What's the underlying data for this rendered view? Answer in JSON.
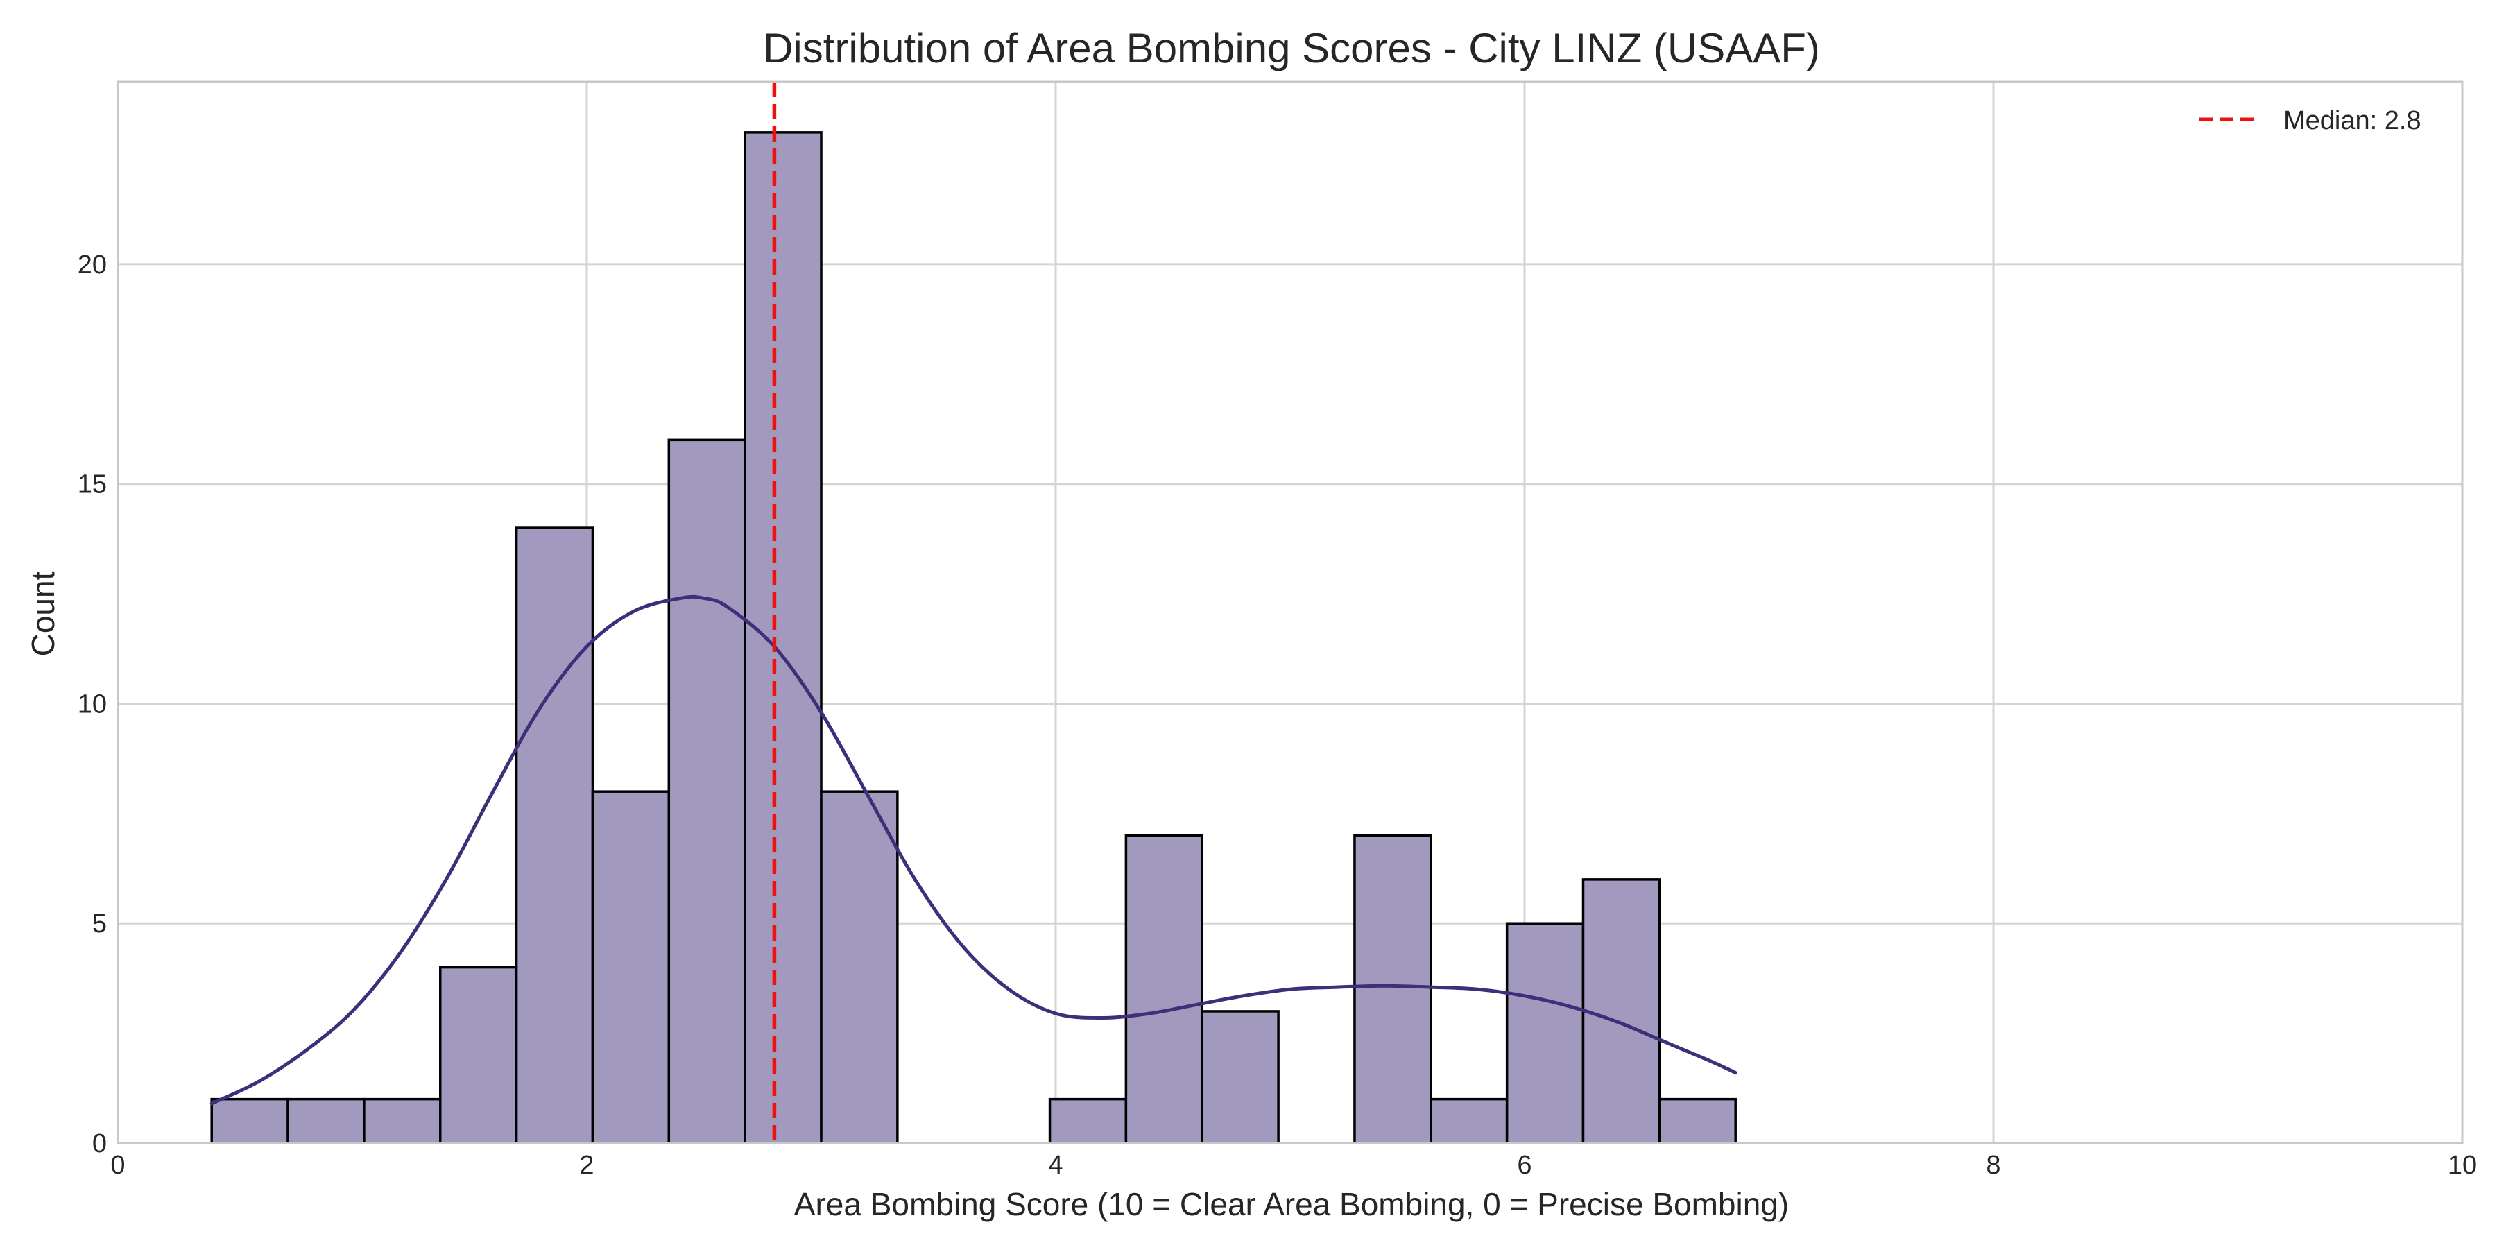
{
  "chart_data": {
    "type": "bar",
    "title": "Distribution of Area Bombing Scores - City LINZ (USAAF)",
    "xlabel": "Area Bombing Score (10 = Clear Area Bombing, 0 = Precise Bombing)",
    "ylabel": "Count",
    "xlim": [
      0,
      10
    ],
    "ylim": [
      0,
      24.15
    ],
    "x_ticks": [
      0,
      2,
      4,
      6,
      8,
      10
    ],
    "y_ticks": [
      0,
      5,
      10,
      15,
      20
    ],
    "grid": true,
    "legend_position": "top-right",
    "bins": [
      {
        "left": 0.4,
        "right": 0.725,
        "count": 1
      },
      {
        "left": 0.725,
        "right": 1.05,
        "count": 1
      },
      {
        "left": 1.05,
        "right": 1.375,
        "count": 1
      },
      {
        "left": 1.375,
        "right": 1.7,
        "count": 4
      },
      {
        "left": 1.7,
        "right": 2.025,
        "count": 14
      },
      {
        "left": 2.025,
        "right": 2.35,
        "count": 8
      },
      {
        "left": 2.35,
        "right": 2.675,
        "count": 16
      },
      {
        "left": 2.675,
        "right": 3.0,
        "count": 23
      },
      {
        "left": 3.0,
        "right": 3.325,
        "count": 8
      },
      {
        "left": 3.325,
        "right": 3.65,
        "count": 0
      },
      {
        "left": 3.65,
        "right": 3.975,
        "count": 0
      },
      {
        "left": 3.975,
        "right": 4.3,
        "count": 1
      },
      {
        "left": 4.3,
        "right": 4.625,
        "count": 7
      },
      {
        "left": 4.625,
        "right": 4.95,
        "count": 3
      },
      {
        "left": 4.95,
        "right": 5.275,
        "count": 0
      },
      {
        "left": 5.275,
        "right": 5.6,
        "count": 7
      },
      {
        "left": 5.6,
        "right": 5.925,
        "count": 1
      },
      {
        "left": 5.925,
        "right": 6.25,
        "count": 5
      },
      {
        "left": 6.25,
        "right": 6.575,
        "count": 6
      },
      {
        "left": 6.575,
        "right": 6.9,
        "count": 1
      }
    ],
    "kde": {
      "x": [
        0.4,
        0.6,
        0.8,
        1.0,
        1.2,
        1.4,
        1.6,
        1.8,
        2.0,
        2.2,
        2.4,
        2.5,
        2.6,
        2.8,
        3.0,
        3.2,
        3.4,
        3.6,
        3.8,
        4.0,
        4.2,
        4.4,
        4.6,
        4.8,
        5.0,
        5.2,
        5.4,
        5.6,
        5.8,
        6.0,
        6.2,
        6.4,
        6.6,
        6.8,
        6.9
      ],
      "y": [
        0.9,
        1.4,
        2.1,
        3.0,
        4.3,
        6.0,
        8.0,
        9.9,
        11.3,
        12.1,
        12.4,
        12.4,
        12.2,
        11.3,
        9.8,
        7.9,
        6.0,
        4.5,
        3.5,
        2.95,
        2.85,
        2.95,
        3.15,
        3.35,
        3.5,
        3.55,
        3.58,
        3.55,
        3.5,
        3.35,
        3.1,
        2.75,
        2.3,
        1.85,
        1.6
      ]
    },
    "median": {
      "value": 2.8,
      "label": "Median: 2.8"
    },
    "colors": {
      "bar_fill": "#a29abe",
      "bar_edge": "#000000",
      "kde_line": "#3f2f7a",
      "median_line": "#f01010",
      "grid": "#d4d4d4",
      "axes_edge": "#c8c8c8"
    }
  }
}
